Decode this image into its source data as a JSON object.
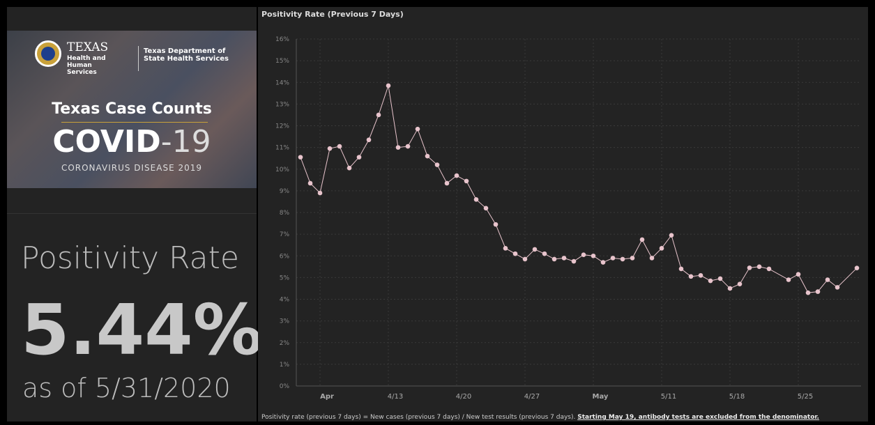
{
  "banner": {
    "agency": "TEXAS",
    "agency_sub": "Health and Human Services",
    "department": "Texas Department of State Health Services",
    "heading": "Texas Case Counts",
    "covid": "COVID",
    "covid_num": "-19",
    "disease": "CORONAVIRUS DISEASE 2019"
  },
  "summary": {
    "label": "Positivity Rate",
    "value": "5.44%",
    "date": "as of 5/31/2020"
  },
  "chart_data": {
    "type": "line",
    "title": "Positivity Rate (Previous 7 Days)",
    "x": [
      "4/4",
      "4/5",
      "4/6",
      "4/7",
      "4/8",
      "4/9",
      "4/10",
      "4/11",
      "4/12",
      "4/13",
      "4/14",
      "4/15",
      "4/16",
      "4/17",
      "4/18",
      "4/19",
      "4/20",
      "4/21",
      "4/22",
      "4/23",
      "4/24",
      "4/25",
      "4/26",
      "4/27",
      "4/28",
      "4/29",
      "4/30",
      "5/1",
      "5/2",
      "5/3",
      "5/4",
      "5/5",
      "5/6",
      "5/7",
      "5/8",
      "5/9",
      "5/10",
      "5/11",
      "5/12",
      "5/13",
      "5/14",
      "5/15",
      "5/16",
      "5/17",
      "5/18",
      "5/19",
      "5/20",
      "5/21",
      "5/22",
      "5/24",
      "5/25",
      "5/26",
      "5/27",
      "5/28",
      "5/29",
      "5/31"
    ],
    "series": [
      {
        "name": "Positivity Rate",
        "color": "#e8c4cc",
        "values": [
          10.55,
          9.35,
          8.9,
          10.95,
          11.05,
          10.05,
          10.55,
          11.35,
          12.5,
          13.85,
          11.0,
          11.05,
          11.85,
          10.6,
          10.2,
          9.35,
          9.7,
          9.45,
          8.6,
          8.2,
          7.45,
          6.35,
          6.1,
          5.85,
          6.3,
          6.1,
          5.85,
          5.9,
          5.75,
          6.05,
          6.0,
          5.7,
          5.9,
          5.85,
          5.9,
          6.75,
          5.9,
          6.35,
          6.95,
          5.4,
          5.05,
          5.1,
          4.85,
          4.95,
          4.5,
          4.7,
          5.45,
          5.5,
          5.4,
          4.9,
          5.15,
          4.3,
          4.35,
          4.9,
          4.55,
          5.44
        ]
      }
    ],
    "xlim": [
      "4/4",
      "5/31"
    ],
    "xticks": [
      {
        "value": "4/6",
        "label": "Apr"
      },
      "4/13",
      "4/20",
      "4/27",
      {
        "value": "5/4",
        "label": "May"
      },
      "5/11",
      "5/18",
      "5/25"
    ],
    "ylim": [
      0,
      16
    ],
    "yticks": [
      {
        "value": 0,
        "label": "0%"
      },
      {
        "value": 1,
        "label": "1%"
      },
      {
        "value": 2,
        "label": "2%"
      },
      {
        "value": 3,
        "label": "3%"
      },
      {
        "value": 4,
        "label": "4%"
      },
      {
        "value": 5,
        "label": "5%"
      },
      {
        "value": 6,
        "label": "6%"
      },
      {
        "value": 7,
        "label": "7%"
      },
      {
        "value": 8,
        "label": "8%"
      },
      {
        "value": 9,
        "label": "9%"
      },
      {
        "value": 10,
        "label": "10%"
      },
      {
        "value": 11,
        "label": "11%"
      },
      {
        "value": 12,
        "label": "12%"
      },
      {
        "value": 13,
        "label": "13%"
      },
      {
        "value": 14,
        "label": "14%"
      },
      {
        "value": 15,
        "label": "15%"
      },
      {
        "value": 16,
        "label": "16%"
      }
    ],
    "grid": true,
    "footnote": "Positivity rate (previous 7 days) = New cases (previous 7 days) / New test results (previous 7 days).",
    "footnote_note": "Starting May 19, antibody tests are excluded from the denominator."
  }
}
